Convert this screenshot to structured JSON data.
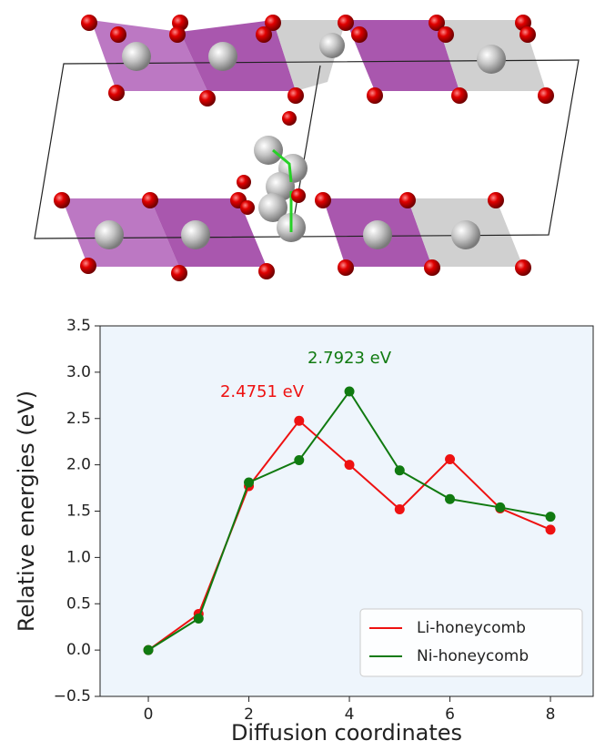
{
  "chart_data": {
    "type": "line",
    "x": [
      0,
      1,
      2,
      3,
      4,
      5,
      6,
      7,
      8
    ],
    "series": [
      {
        "name": "Li-honeycomb",
        "color": "#ee1111",
        "values": [
          0,
          0.39,
          1.77,
          2.4751,
          2.0,
          1.52,
          2.06,
          1.53,
          1.3
        ]
      },
      {
        "name": "Ni-honeycomb",
        "color": "#107a10",
        "values": [
          0,
          0.34,
          1.81,
          2.05,
          2.7923,
          1.94,
          1.63,
          1.54,
          1.44
        ]
      }
    ],
    "xlim": [
      -0.96,
      8.85
    ],
    "ylim": [
      -0.5,
      3.5
    ],
    "xticks": [
      0,
      2,
      4,
      6,
      8
    ],
    "yticks": [
      {
        "value": -0.5,
        "label": "−0.5"
      },
      {
        "value": 0,
        "label": "0.0"
      },
      0.5,
      {
        "value": 1,
        "label": "1.0"
      },
      1.5,
      {
        "value": 2,
        "label": "2.0"
      },
      2.5,
      {
        "value": 3,
        "label": "3.0"
      },
      3.5
    ],
    "xlabel": "Diffusion coordinates",
    "ylabel": "Relative energies (eV)",
    "annotations": [
      {
        "text": "2.7923 eV",
        "color": "#107a10"
      },
      {
        "text": "2.4751 eV",
        "color": "#ee1111"
      }
    ],
    "legend": "lower right",
    "background": "#eef5fc"
  }
}
